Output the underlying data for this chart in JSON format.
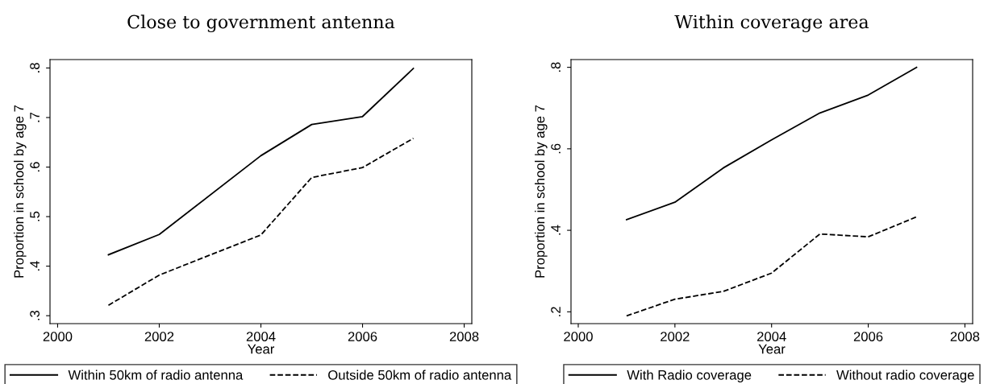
{
  "chart_data": [
    {
      "type": "line",
      "title": "Close to government antenna",
      "xlabel": "Year",
      "ylabel": "Proportion in school by age 7",
      "xlim": [
        1999.85,
        2008.15
      ],
      "xticks": [
        2000,
        2002,
        2004,
        2006,
        2008
      ],
      "ylim": [
        0.284,
        0.817
      ],
      "yticks": [
        {
          "value": 0.3,
          "label": ".3"
        },
        {
          "value": 0.4,
          "label": ".4"
        },
        {
          "value": 0.5,
          "label": ".5"
        },
        {
          "value": 0.6,
          "label": ".6"
        },
        {
          "value": 0.7,
          "label": ".7"
        },
        {
          "value": 0.8,
          "label": ".8"
        }
      ],
      "grid": false,
      "legend": "bottom",
      "series": [
        {
          "name": "Within 50km of radio antenna",
          "color": "#000000",
          "line_style": "solid",
          "x": [
            2001,
            2002,
            2004,
            2005,
            2006,
            2007
          ],
          "values": [
            0.423,
            0.464,
            0.623,
            0.686,
            0.702,
            0.799
          ]
        },
        {
          "name": "Outside 50km of radio antenna",
          "color": "#000000",
          "line_style": "dashed",
          "x": [
            2001,
            2002,
            2004,
            2005,
            2006,
            2007
          ],
          "values": [
            0.321,
            0.382,
            0.463,
            0.579,
            0.599,
            0.658
          ]
        }
      ]
    },
    {
      "type": "line",
      "title": "Within coverage area",
      "xlabel": "Year",
      "ylabel": "Proportion in school by age 7",
      "xlim": [
        1999.85,
        2008.16
      ],
      "xticks": [
        2000,
        2002,
        2004,
        2006,
        2008
      ],
      "ylim": [
        0.171,
        0.819
      ],
      "yticks": [
        {
          "value": 0.2,
          "label": ".2"
        },
        {
          "value": 0.4,
          "label": ".4"
        },
        {
          "value": 0.6,
          "label": ".6"
        },
        {
          "value": 0.8,
          "label": ".8"
        }
      ],
      "grid": false,
      "legend": "bottom",
      "series": [
        {
          "name": "With Radio coverage",
          "color": "#000000",
          "line_style": "solid",
          "x": [
            2001,
            2002,
            2003,
            2004,
            2005,
            2006,
            2007
          ],
          "values": [
            0.426,
            0.469,
            0.553,
            0.622,
            0.688,
            0.732,
            0.8
          ]
        },
        {
          "name": "Without radio coverage",
          "color": "#000000",
          "line_style": "dashed",
          "x": [
            2001,
            2002,
            2003,
            2004,
            2005,
            2006,
            2007
          ],
          "values": [
            0.19,
            0.231,
            0.25,
            0.295,
            0.391,
            0.384,
            0.433
          ]
        }
      ]
    }
  ]
}
